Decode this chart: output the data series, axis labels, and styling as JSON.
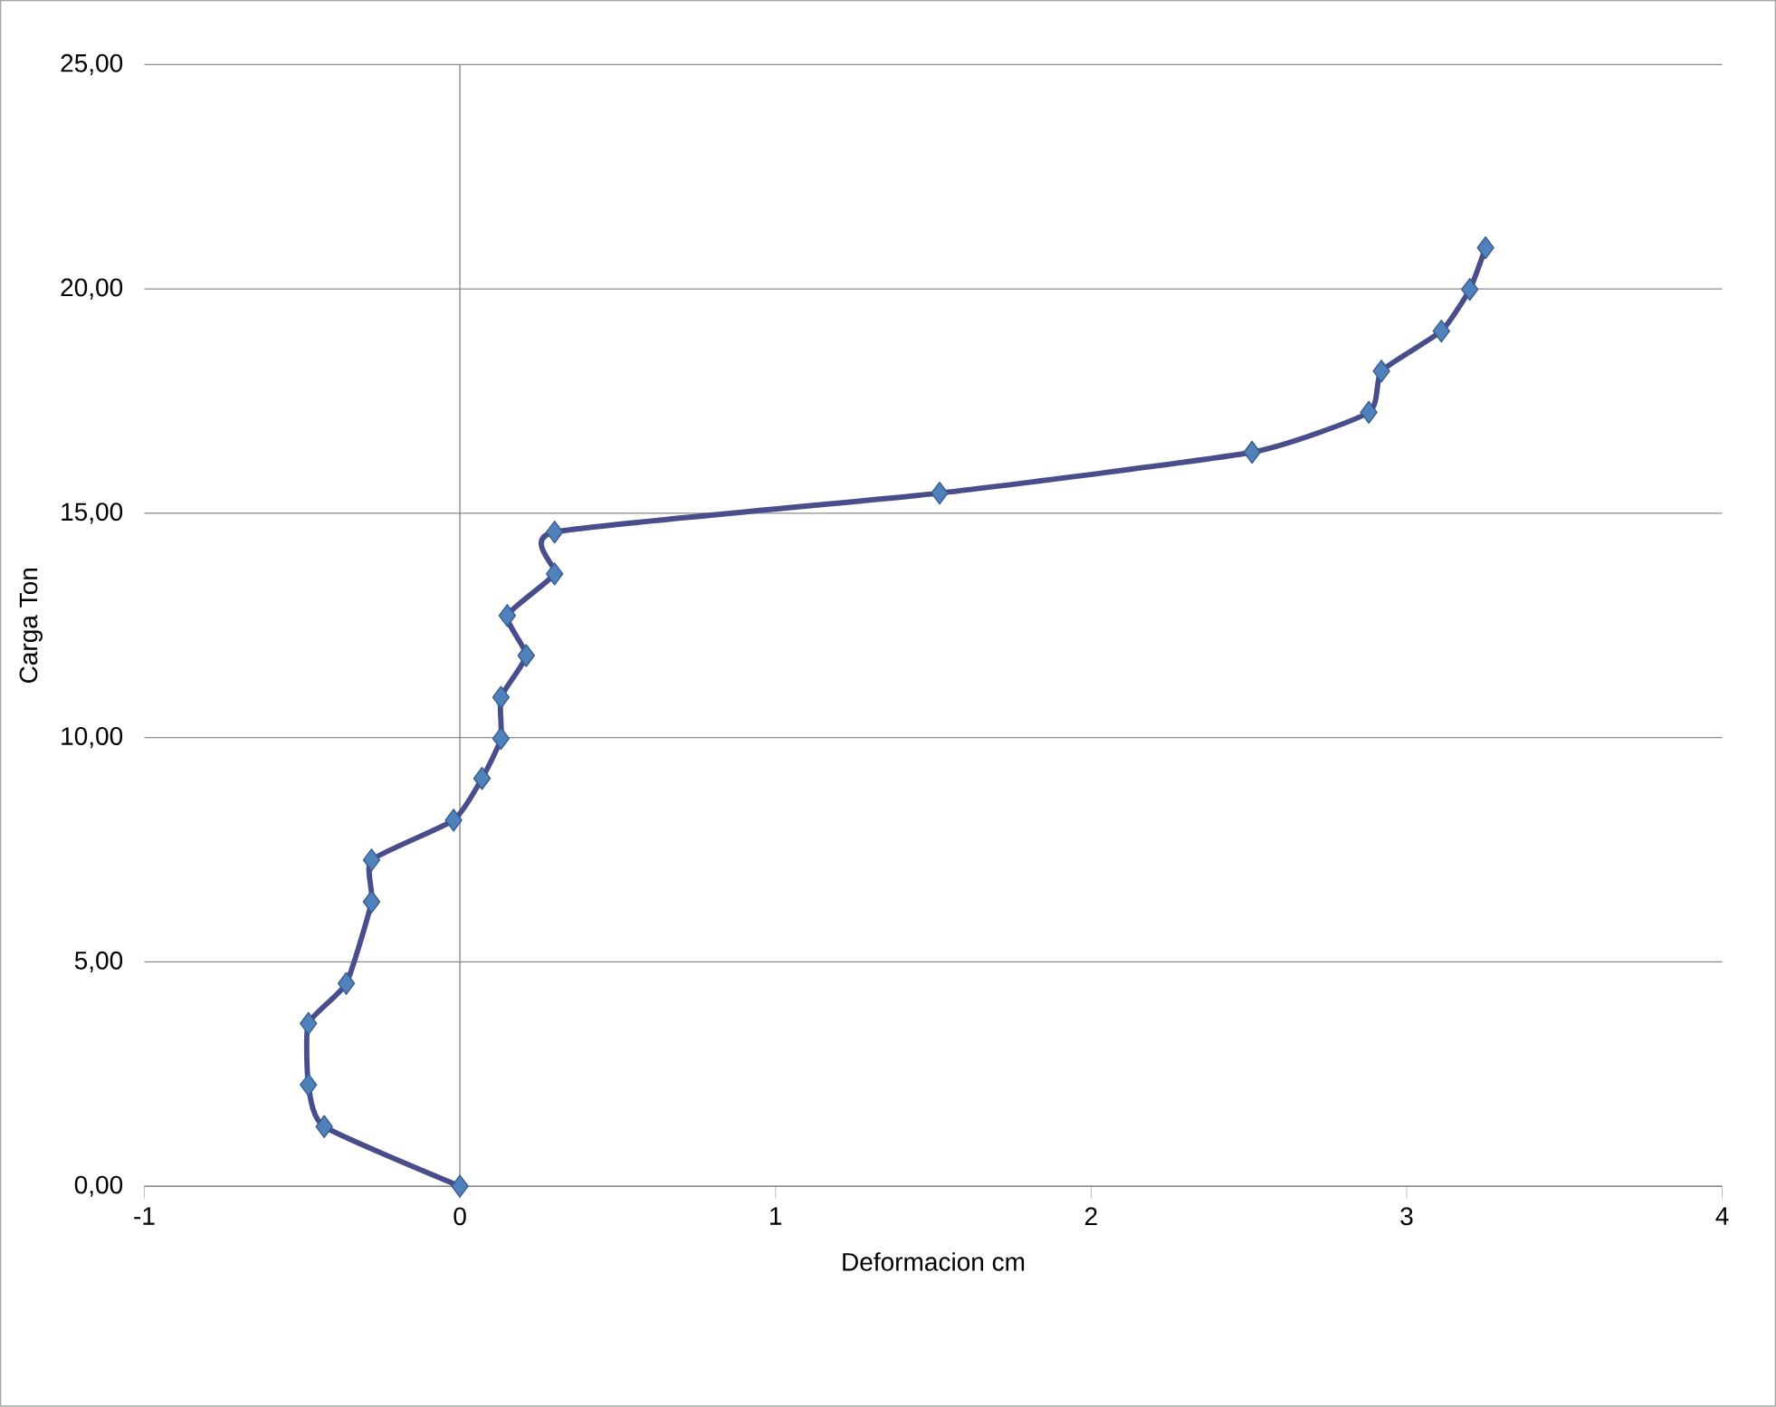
{
  "chart_data": {
    "type": "line",
    "xlabel": "Deformacion cm",
    "ylabel": "Carga Ton",
    "series": [
      {
        "color": "#4f81bd",
        "x": [
          0,
          -0.43,
          -0.48,
          -0.48,
          -0.36,
          -0.28,
          -0.28,
          -0.02,
          0.07,
          0.13,
          0.13,
          0.21,
          0.15,
          0.3,
          0.3,
          1.52,
          2.51,
          2.88,
          2.92,
          3.11,
          3.2,
          3.25
        ],
        "values": [
          0,
          1.33,
          2.26,
          3.63,
          4.52,
          6.34,
          7.27,
          8.16,
          9.09,
          9.98,
          10.9,
          11.83,
          12.72,
          13.65,
          14.58,
          15.45,
          16.36,
          17.25,
          18.17,
          19.06,
          19.99,
          20.92
        ]
      }
    ],
    "xlim": [
      -1,
      4
    ],
    "xticks": [
      -1,
      0,
      1,
      2,
      3,
      4
    ],
    "ylim": [
      0,
      25
    ],
    "yticks": [
      {
        "value": 0,
        "label": "0,00"
      },
      {
        "value": 5,
        "label": "5,00"
      },
      {
        "value": 10,
        "label": "10,00"
      },
      {
        "value": 15,
        "label": "15,00"
      },
      {
        "value": 20,
        "label": "20,00"
      },
      {
        "value": 25,
        "label": "25,00"
      }
    ],
    "grid": "y",
    "marker": "diamond",
    "line_style": "solid"
  }
}
